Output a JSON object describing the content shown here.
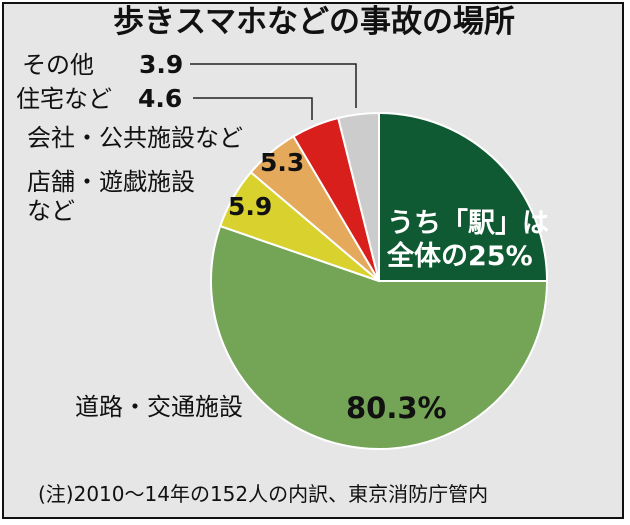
{
  "chart_data": {
    "type": "pie",
    "title": "歩きスマホなどの事故の場所",
    "slices": [
      {
        "label": "道路・交通施設",
        "value": 80.3,
        "value_label": "80.3%",
        "color": "#74a456"
      },
      {
        "label": "店舗・遊戯施設など",
        "value": 5.9,
        "value_label": "5.9",
        "color": "#d8d12e"
      },
      {
        "label": "会社・公共施設など",
        "value": 5.3,
        "value_label": "5.3",
        "color": "#e5a95b"
      },
      {
        "label": "住宅など",
        "value": 4.6,
        "value_label": "4.6",
        "color": "#d81f1c"
      },
      {
        "label": "その他",
        "value": 3.9,
        "value_label": "3.9",
        "color": "#cccccc"
      }
    ],
    "highlight": {
      "text_line1": "うち「駅」は",
      "text_line2": "全体の25%",
      "value": 25,
      "color": "#0f5a32"
    },
    "note": "(注)2010〜14年の152人の内訳、東京消防庁管内"
  }
}
